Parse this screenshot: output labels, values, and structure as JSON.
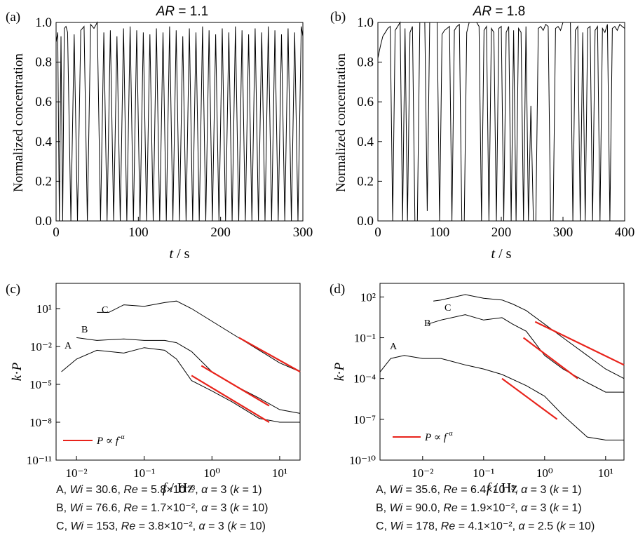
{
  "chart_data": [
    {
      "panel": "(a)",
      "type": "line",
      "title": "AR = 1.1",
      "xlabel": "t / s",
      "ylabel": "Normalized concentration",
      "xlim": [
        0,
        300
      ],
      "ylim": [
        0,
        1.0
      ],
      "xticks": [
        0,
        100,
        200,
        300
      ],
      "yticks": [
        0.0,
        0.2,
        0.4,
        0.6,
        0.8,
        1.0
      ],
      "description_series": "Normalized concentration fluctuating between 0 and 1 with frequent drops to 0",
      "series": [
        {
          "x": [
            0,
            2,
            4,
            6,
            8,
            10,
            12,
            14,
            18,
            22,
            26,
            30,
            34,
            38,
            42,
            46,
            50,
            54,
            58,
            62,
            66,
            70,
            74,
            78,
            82,
            86,
            90,
            94,
            98,
            102,
            106,
            110,
            114,
            118,
            122,
            126,
            130,
            134,
            138,
            142,
            146,
            150,
            154,
            158,
            162,
            166,
            170,
            174,
            178,
            182,
            186,
            190,
            194,
            198,
            202,
            206,
            210,
            214,
            218,
            222,
            226,
            230,
            234,
            238,
            242,
            246,
            250,
            254,
            258,
            262,
            266,
            270,
            274,
            278,
            282,
            286,
            290,
            294,
            298,
            300
          ],
          "y": [
            0.9,
            0.95,
            0.0,
            0.93,
            0.0,
            0.97,
            0.98,
            0.95,
            0.0,
            0.94,
            0.0,
            0.96,
            0.98,
            0.0,
            0.99,
            0.97,
            1.0,
            0.0,
            0.95,
            0.0,
            0.96,
            0.0,
            0.93,
            0.0,
            0.97,
            0.0,
            0.98,
            0.0,
            0.96,
            0.0,
            0.95,
            0.0,
            0.94,
            0.0,
            0.97,
            0.0,
            0.95,
            0.0,
            0.98,
            0.0,
            0.96,
            0.0,
            0.93,
            0.0,
            0.97,
            0.0,
            0.95,
            0.0,
            0.98,
            0.0,
            0.96,
            0.0,
            0.94,
            0.0,
            0.97,
            0.0,
            0.95,
            0.0,
            0.98,
            0.0,
            0.96,
            0.0,
            0.94,
            0.0,
            0.97,
            0.0,
            0.95,
            0.0,
            0.98,
            0.0,
            0.96,
            0.0,
            0.94,
            0.0,
            0.97,
            0.0,
            0.95,
            0.0,
            0.98,
            0.93
          ]
        }
      ]
    },
    {
      "panel": "(b)",
      "type": "line",
      "title": "AR = 1.8",
      "xlabel": "t / s",
      "ylabel": "Normalized concentration",
      "xlim": [
        0,
        400
      ],
      "ylim": [
        0,
        1.0
      ],
      "xticks": [
        0,
        100,
        200,
        300,
        400
      ],
      "yticks": [
        0.0,
        0.2,
        0.4,
        0.6,
        0.8,
        1.0
      ],
      "series": [
        {
          "x": [
            0,
            4,
            8,
            12,
            16,
            20,
            24,
            28,
            32,
            36,
            40,
            44,
            48,
            52,
            56,
            60,
            64,
            68,
            72,
            76,
            80,
            84,
            88,
            92,
            96,
            100,
            104,
            108,
            112,
            116,
            120,
            124,
            128,
            132,
            136,
            140,
            144,
            148,
            152,
            156,
            160,
            164,
            168,
            172,
            176,
            180,
            184,
            188,
            192,
            196,
            200,
            204,
            208,
            212,
            216,
            220,
            224,
            228,
            232,
            236,
            240,
            244,
            248,
            252,
            256,
            260,
            264,
            268,
            272,
            276,
            280,
            284,
            288,
            292,
            296,
            300,
            304,
            308,
            312,
            316,
            320,
            324,
            328,
            332,
            336,
            340,
            344,
            348,
            352,
            356,
            360,
            364,
            368,
            372,
            376,
            380,
            384,
            388,
            392,
            396,
            400
          ],
          "y": [
            0.82,
            0.88,
            0.93,
            0.95,
            0.97,
            0.98,
            0.0,
            0.96,
            0.98,
            1.0,
            0.0,
            0.97,
            0.0,
            0.95,
            0.98,
            0.0,
            0.0,
            1.0,
            1.0,
            1.0,
            0.05,
            1.0,
            1.0,
            1.0,
            1.0,
            0.0,
            0.94,
            0.96,
            0.97,
            0.98,
            0.0,
            0.96,
            0.98,
            0.99,
            0.0,
            0.0,
            0.95,
            1.0,
            1.0,
            1.0,
            1.0,
            0.98,
            0.0,
            0.96,
            0.98,
            0.0,
            0.97,
            0.95,
            0.0,
            0.97,
            0.98,
            0.0,
            0.95,
            0.98,
            0.0,
            0.96,
            0.0,
            0.97,
            0.95,
            0.0,
            0.98,
            0.0,
            0.58,
            0.0,
            0.0,
            0.97,
            0.98,
            0.96,
            0.99,
            0.98,
            0.0,
            0.0,
            0.97,
            0.98,
            0.96,
            1.0,
            1.0,
            1.0,
            1.0,
            0.0,
            0.96,
            0.98,
            0.0,
            0.95,
            0.0,
            0.97,
            0.98,
            0.0,
            0.96,
            0.98,
            0.0,
            0.97,
            0.95,
            0.99,
            0.0,
            0.97,
            0.98,
            0.96,
            0.99,
            0.98,
            0.97
          ]
        }
      ]
    },
    {
      "panel": "(c)",
      "type": "line",
      "xlabel": "f / Hz",
      "ylabel": "k·P",
      "xscale": "log",
      "yscale": "log",
      "xlim": [
        0.005,
        20
      ],
      "ylim": [
        1e-11,
        1000.0
      ],
      "xtick_labels": [
        "10⁻²",
        "10⁻¹",
        "10⁰",
        "10¹"
      ],
      "ytick_labels": [
        "10⁻¹¹",
        "10⁻⁸",
        "10⁻⁵",
        "10⁻²",
        "10¹"
      ],
      "legend": {
        "label": "P ∝ f^-α",
        "position": "bottom-left"
      },
      "series": [
        {
          "label": "A",
          "x": [
            0.006,
            0.01,
            0.02,
            0.05,
            0.1,
            0.2,
            0.3,
            0.5,
            1,
            2,
            5,
            10,
            20
          ],
          "y": [
            0.0001,
            0.001,
            0.005,
            0.003,
            0.008,
            0.005,
            0.001,
            2e-05,
            3e-06,
            4e-07,
            2e-08,
            1e-08,
            1e-08
          ]
        },
        {
          "label": "B",
          "x": [
            0.01,
            0.02,
            0.05,
            0.1,
            0.2,
            0.3,
            0.5,
            1,
            2,
            5,
            10,
            20
          ],
          "y": [
            0.05,
            0.03,
            0.04,
            0.03,
            0.03,
            0.02,
            0.004,
            0.0001,
            1e-05,
            8e-07,
            1e-07,
            5e-08
          ]
        },
        {
          "label": "C",
          "x": [
            0.02,
            0.03,
            0.05,
            0.1,
            0.2,
            0.3,
            0.5,
            1,
            2,
            5,
            10,
            20
          ],
          "y": [
            5,
            5,
            20,
            15,
            30,
            40,
            10,
            1,
            0.1,
            0.005,
            0.0005,
            0.0001
          ]
        },
        {
          "label": "fit A",
          "x": [
            0.5,
            7
          ],
          "y": [
            5e-05,
            1e-08
          ]
        },
        {
          "label": "fit B",
          "x": [
            0.7,
            7
          ],
          "y": [
            0.0003,
            2e-07
          ]
        },
        {
          "label": "fit C",
          "x": [
            2.5,
            20
          ],
          "y": [
            0.05,
            0.0001
          ]
        }
      ],
      "annotation_labels": [
        "A",
        "B",
        "C"
      ]
    },
    {
      "panel": "(d)",
      "type": "line",
      "xlabel": "f / Hz",
      "ylabel": "k·P",
      "xscale": "log",
      "yscale": "log",
      "xlim": [
        0.002,
        20
      ],
      "ylim": [
        1e-10,
        1000.0
      ],
      "xtick_labels": [
        "10⁻²",
        "10⁻¹",
        "10⁰",
        "10¹"
      ],
      "ytick_labels": [
        "10⁻¹⁰",
        "10⁻⁷",
        "10⁻⁴",
        "10⁻¹",
        "10²"
      ],
      "legend": {
        "label": "P ∝ f^-α",
        "position": "bottom-left"
      },
      "series": [
        {
          "label": "A",
          "x": [
            0.002,
            0.003,
            0.005,
            0.01,
            0.02,
            0.05,
            0.1,
            0.2,
            0.5,
            1,
            2,
            5,
            10,
            20
          ],
          "y": [
            0.0003,
            0.003,
            0.005,
            0.003,
            0.003,
            0.001,
            0.0005,
            0.0002,
            3e-05,
            5e-06,
            2e-07,
            5e-09,
            3e-09,
            3e-09
          ]
        },
        {
          "label": "B",
          "x": [
            0.012,
            0.02,
            0.05,
            0.1,
            0.2,
            0.3,
            0.5,
            1,
            2,
            5,
            10,
            20
          ],
          "y": [
            1,
            2,
            5,
            2,
            3,
            1,
            0.3,
            0.005,
            0.0005,
            5e-05,
            1e-05,
            1e-05
          ]
        },
        {
          "label": "C",
          "x": [
            0.015,
            0.02,
            0.05,
            0.1,
            0.2,
            0.3,
            0.5,
            1,
            2,
            5,
            10,
            20
          ],
          "y": [
            50,
            60,
            150,
            80,
            60,
            30,
            10,
            1,
            0.1,
            0.005,
            0.0005,
            0.0001
          ]
        },
        {
          "label": "fit A",
          "x": [
            0.2,
            1.6
          ],
          "y": [
            0.0001,
            1e-07
          ]
        },
        {
          "label": "fit B",
          "x": [
            0.45,
            3.5
          ],
          "y": [
            0.1,
            0.0001
          ]
        },
        {
          "label": "fit C",
          "x": [
            0.7,
            20
          ],
          "y": [
            1.5,
            0.001
          ]
        }
      ],
      "annotation_labels": [
        "A",
        "B",
        "C"
      ]
    }
  ],
  "captions": {
    "c": [
      {
        "curve": "A",
        "wi": "30.6",
        "re": "5.8×10⁻³",
        "alpha": "3",
        "k": "1"
      },
      {
        "curve": "B",
        "wi": "76.6",
        "re": "1.7×10⁻²",
        "alpha": "3",
        "k": "10"
      },
      {
        "curve": "C",
        "wi": "153",
        "re": "3.8×10⁻²",
        "alpha": "3",
        "k": "10"
      }
    ],
    "d": [
      {
        "curve": "A",
        "wi": "35.6",
        "re": "6.4×10⁻³",
        "alpha": "3",
        "k": "1"
      },
      {
        "curve": "B",
        "wi": "90.0",
        "re": "1.9×10⁻²",
        "alpha": "3",
        "k": "1"
      },
      {
        "curve": "C",
        "wi": "178",
        "re": "4.1×10⁻²",
        "alpha": "2.5",
        "k": "10"
      }
    ]
  },
  "colors": {
    "trace": "#000000",
    "fit": "#e8231b"
  }
}
